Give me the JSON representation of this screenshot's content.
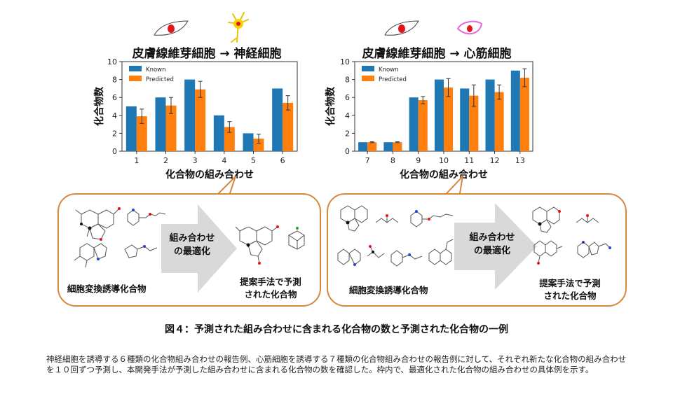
{
  "charts": [
    {
      "title": "皮膚線維芽細胞 → 神経細胞",
      "start_cell_icon": "fibroblast-cell-icon",
      "target_cell_icon": "neuron-cell-icon"
    },
    {
      "title": "皮膚線維芽細胞 → 心筋細胞",
      "start_cell_icon": "fibroblast-cell-icon",
      "target_cell_icon": "cardiomyocyte-cell-icon"
    }
  ],
  "chart_data": [
    {
      "type": "bar",
      "title": "皮膚線維芽細胞 → 神経細胞",
      "xlabel": "化合物の組み合わせ",
      "ylabel": "化合物数",
      "categories": [
        "1",
        "2",
        "3",
        "4",
        "5",
        "6"
      ],
      "series": [
        {
          "name": "Known",
          "values": [
            5,
            6,
            8,
            4,
            2,
            7
          ],
          "color": "#1f77b4"
        },
        {
          "name": "Predicted",
          "values": [
            3.9,
            5.1,
            6.9,
            2.7,
            1.4,
            5.4
          ],
          "error": [
            0.8,
            0.9,
            0.9,
            0.6,
            0.5,
            0.8
          ],
          "color": "#ff7f0e"
        }
      ],
      "ylim": [
        0,
        10
      ],
      "yticks": [
        0,
        2,
        4,
        6,
        8,
        10
      ],
      "legend": "top-left"
    },
    {
      "type": "bar",
      "title": "皮膚線維芽細胞 → 心筋細胞",
      "xlabel": "化合物の組み合わせ",
      "ylabel": "化合物数",
      "categories": [
        "7",
        "8",
        "9",
        "10",
        "11",
        "12",
        "13"
      ],
      "series": [
        {
          "name": "Known",
          "values": [
            1,
            1,
            6,
            8,
            7,
            8,
            9
          ],
          "color": "#1f77b4"
        },
        {
          "name": "Predicted",
          "values": [
            1.0,
            1.0,
            5.7,
            7.1,
            6.2,
            6.6,
            8.2
          ],
          "error": [
            0.05,
            0.05,
            0.4,
            1.0,
            1.2,
            0.8,
            1.0
          ],
          "color": "#ff7f0e"
        }
      ],
      "ylim": [
        0,
        10
      ],
      "yticks": [
        0,
        2,
        4,
        6,
        8,
        10
      ],
      "legend": "top-left"
    }
  ],
  "panels": [
    {
      "arrow_text_line1": "組み合わせ",
      "arrow_text_line2": "の最適化",
      "left_label": "細胞変換誘導化合物",
      "right_label_line1": "提案手法で予測",
      "right_label_line2": "された化合物"
    },
    {
      "arrow_text_line1": "組み合わせ",
      "arrow_text_line2": "の最適化",
      "left_label": "細胞変換誘導化合物",
      "right_label_line1": "提案手法で予測",
      "right_label_line2": "された化合物"
    }
  ],
  "figure_caption": "図４：予測された組み合わせに含まれる化合物の数と予測された化合物の一例",
  "description": "神経細胞を誘導する６種類の化合物組み合わせの報告例、心筋細胞を誘導する７種類の化合物組み合わせの報告例に対して、それぞれ新たな化合物の組み合わせを１０回ずつ予測し、本開発手法が予測した組み合わせに含まれる化合物の数を確認した。枠内で、最適化された化合物の組み合わせの具体例を示す。"
}
